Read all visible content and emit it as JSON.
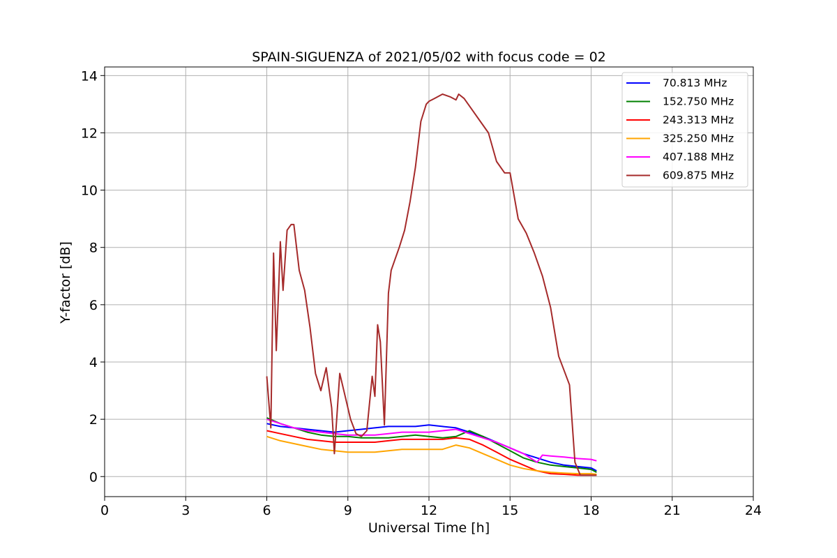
{
  "chart_data": {
    "type": "line",
    "title": "SPAIN-SIGUENZA of 2021/05/02 with focus code = 02",
    "xlabel": "Universal Time [h]",
    "ylabel": "Y-factor [dB]",
    "xlim": [
      0,
      24
    ],
    "ylim": [
      -0.7,
      14.3
    ],
    "xticks": [
      0,
      3,
      6,
      9,
      12,
      15,
      18,
      21,
      24
    ],
    "yticks": [
      0,
      2,
      4,
      6,
      8,
      10,
      12,
      14
    ],
    "grid": true,
    "legend_position": "top-right",
    "series": [
      {
        "name": " 70.813 MHz",
        "color": "#0000ff",
        "x": [
          6.0,
          6.5,
          7.0,
          7.5,
          8.0,
          8.5,
          9.0,
          9.5,
          10.0,
          10.5,
          11.0,
          11.5,
          12.0,
          12.5,
          13.0,
          13.5,
          14.0,
          14.5,
          15.0,
          15.5,
          16.0,
          16.5,
          17.0,
          17.5,
          18.0,
          18.2
        ],
        "y": [
          1.85,
          1.75,
          1.7,
          1.65,
          1.6,
          1.55,
          1.6,
          1.65,
          1.7,
          1.75,
          1.75,
          1.75,
          1.8,
          1.75,
          1.7,
          1.55,
          1.4,
          1.2,
          1.0,
          0.8,
          0.65,
          0.5,
          0.4,
          0.35,
          0.3,
          0.2
        ]
      },
      {
        "name": "152.750 MHz",
        "color": "#008000",
        "x": [
          6.0,
          6.5,
          7.0,
          7.5,
          8.0,
          8.5,
          9.0,
          9.5,
          10.0,
          10.5,
          11.0,
          11.5,
          12.0,
          12.5,
          13.0,
          13.5,
          14.0,
          14.5,
          15.0,
          15.5,
          16.0,
          16.5,
          17.0,
          17.5,
          18.0,
          18.2
        ],
        "y": [
          2.05,
          1.85,
          1.7,
          1.55,
          1.45,
          1.4,
          1.4,
          1.35,
          1.35,
          1.35,
          1.4,
          1.45,
          1.4,
          1.35,
          1.4,
          1.6,
          1.4,
          1.15,
          0.9,
          0.65,
          0.5,
          0.4,
          0.35,
          0.3,
          0.25,
          0.15
        ]
      },
      {
        "name": "243.313 MHz",
        "color": "#ff0000",
        "x": [
          6.0,
          6.5,
          7.0,
          7.5,
          8.0,
          8.5,
          9.0,
          9.5,
          10.0,
          10.5,
          11.0,
          11.5,
          12.0,
          12.5,
          13.0,
          13.5,
          14.0,
          14.5,
          15.0,
          15.5,
          16.0,
          16.5,
          17.0,
          17.5,
          18.0,
          18.2
        ],
        "y": [
          1.6,
          1.5,
          1.4,
          1.3,
          1.25,
          1.2,
          1.2,
          1.2,
          1.2,
          1.25,
          1.3,
          1.3,
          1.3,
          1.3,
          1.35,
          1.3,
          1.1,
          0.85,
          0.6,
          0.4,
          0.2,
          0.1,
          0.08,
          0.05,
          0.05,
          0.05
        ]
      },
      {
        "name": "325.250 MHz",
        "color": "#ffa500",
        "x": [
          6.0,
          6.5,
          7.0,
          7.5,
          8.0,
          8.5,
          9.0,
          9.5,
          10.0,
          10.5,
          11.0,
          11.5,
          12.0,
          12.5,
          13.0,
          13.5,
          14.0,
          14.5,
          15.0,
          15.5,
          16.0,
          16.5,
          17.0,
          17.5,
          18.0,
          18.2
        ],
        "y": [
          1.4,
          1.25,
          1.15,
          1.05,
          0.95,
          0.9,
          0.85,
          0.85,
          0.85,
          0.9,
          0.95,
          0.95,
          0.95,
          0.95,
          1.1,
          1.0,
          0.8,
          0.6,
          0.4,
          0.28,
          0.2,
          0.15,
          0.12,
          0.1,
          0.1,
          0.08
        ]
      },
      {
        "name": "407.188 MHz",
        "color": "#ff00ff",
        "x": [
          6.0,
          6.5,
          7.0,
          7.5,
          8.0,
          8.5,
          9.0,
          9.5,
          10.0,
          10.5,
          11.0,
          11.5,
          12.0,
          12.5,
          13.0,
          13.5,
          14.0,
          14.5,
          15.0,
          15.5,
          16.0,
          16.2,
          16.5,
          17.0,
          17.5,
          18.0,
          18.2
        ],
        "y": [
          2.0,
          1.85,
          1.7,
          1.6,
          1.55,
          1.5,
          1.45,
          1.45,
          1.45,
          1.5,
          1.55,
          1.55,
          1.55,
          1.6,
          1.65,
          1.5,
          1.35,
          1.2,
          1.0,
          0.8,
          0.5,
          0.75,
          0.72,
          0.68,
          0.63,
          0.6,
          0.55
        ]
      },
      {
        "name": "609.875 MHz",
        "color": "#a52a2a",
        "x": [
          6.0,
          6.15,
          6.25,
          6.35,
          6.45,
          6.5,
          6.6,
          6.75,
          6.9,
          7.0,
          7.2,
          7.4,
          7.6,
          7.8,
          8.0,
          8.2,
          8.4,
          8.5,
          8.7,
          8.9,
          9.1,
          9.3,
          9.5,
          9.7,
          9.9,
          10.0,
          10.1,
          10.2,
          10.35,
          10.5,
          10.6,
          10.75,
          10.9,
          11.1,
          11.3,
          11.5,
          11.7,
          11.9,
          12.0,
          12.2,
          12.5,
          12.8,
          13.0,
          13.1,
          13.3,
          13.6,
          13.9,
          14.2,
          14.5,
          14.8,
          15.0,
          15.3,
          15.6,
          15.9,
          16.2,
          16.5,
          16.8,
          17.0,
          17.2,
          17.4,
          17.6,
          17.8,
          17.9,
          18.0,
          18.05,
          18.1,
          18.2
        ],
        "y": [
          3.5,
          1.7,
          7.8,
          4.4,
          6.8,
          8.2,
          6.5,
          8.6,
          8.8,
          8.8,
          7.2,
          6.5,
          5.2,
          3.6,
          3.0,
          3.8,
          2.4,
          0.8,
          3.6,
          2.8,
          2.0,
          1.5,
          1.4,
          1.6,
          3.5,
          2.8,
          5.3,
          4.7,
          1.8,
          6.4,
          7.2,
          7.6,
          8.0,
          8.6,
          9.6,
          10.8,
          12.4,
          13.0,
          13.1,
          13.2,
          13.35,
          13.25,
          13.15,
          13.35,
          13.2,
          12.8,
          12.4,
          12.0,
          11.0,
          10.6,
          10.6,
          9.0,
          8.5,
          7.8,
          7.0,
          5.9,
          4.2,
          3.7,
          3.2,
          0.5,
          0.05,
          0.05,
          0.05,
          0.05,
          0.05,
          0.05,
          0.05
        ]
      }
    ]
  }
}
